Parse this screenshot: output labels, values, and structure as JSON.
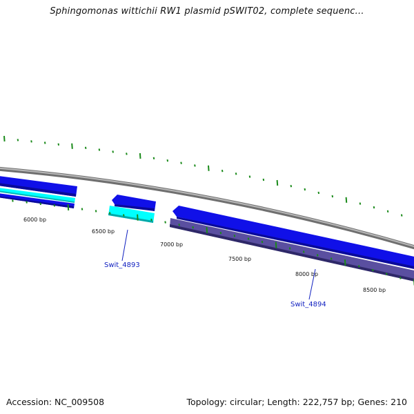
{
  "title": "Sphingomonas wittichii RW1 plasmid pSWIT02, complete sequenc...",
  "footer": {
    "accession": "Accession: NC_009508",
    "stats": "Topology: circular; Length: 222,757 bp; Genes: 210"
  },
  "colors": {
    "backbone": "#8a8a8a",
    "forward_gene": "#1010e8",
    "reverse_gene": "#5a4fa0",
    "cyan_feature": "#00ffff",
    "tick": "#1a8a1a",
    "label": "#1020c0"
  },
  "scale_labels": [
    "6000 bp",
    "6500 bp",
    "7000 bp",
    "7500 bp",
    "8000 bp",
    "8500 bp"
  ],
  "gene_labels": [
    "Swit_4893",
    "Swit_4894"
  ]
}
